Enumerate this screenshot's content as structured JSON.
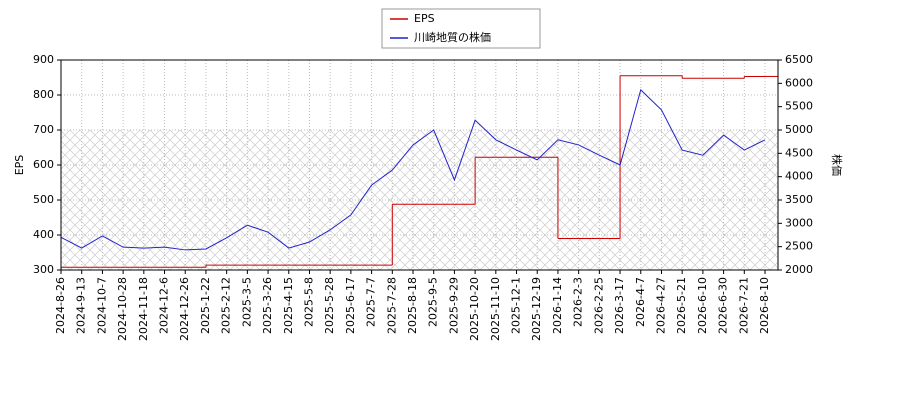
{
  "chart_data": {
    "type": "line",
    "x": [
      "2024-8-26",
      "2024-9-13",
      "2024-10-7",
      "2024-10-28",
      "2024-11-18",
      "2024-12-6",
      "2024-12-26",
      "2025-1-22",
      "2025-2-12",
      "2025-3-5",
      "2025-3-26",
      "2025-4-15",
      "2025-5-8",
      "2025-5-28",
      "2025-6-17",
      "2025-7-7",
      "2025-7-28",
      "2025-8-18",
      "2025-9-5",
      "2025-9-29",
      "2025-10-20",
      "2025-11-10",
      "2025-12-1",
      "2025-12-19",
      "2026-1-14",
      "2026-2-3",
      "2026-2-25",
      "2026-3-17",
      "2026-4-7",
      "2026-4-27",
      "2026-5-21",
      "2026-6-10",
      "2026-6-30",
      "2026-7-21",
      "2026-8-10"
    ],
    "ylabel": "EPS",
    "y2label": "株価",
    "ylim": [
      300,
      900
    ],
    "yticks": [
      300,
      400,
      500,
      600,
      700,
      800,
      900
    ],
    "y2lim": [
      2000,
      6500
    ],
    "y2ticks": [
      2000,
      2500,
      3000,
      3500,
      4000,
      4500,
      5000,
      5500,
      6000,
      6500
    ],
    "grid": true,
    "series": [
      {
        "name": "EPS",
        "color": "#cc0000",
        "step": true,
        "values": [
          308,
          308,
          308,
          308,
          308,
          308,
          308,
          314,
          314,
          314,
          314,
          314,
          314,
          314,
          314,
          314,
          488,
          488,
          488,
          488,
          622,
          622,
          622,
          622,
          390,
          390,
          390,
          855,
          855,
          855,
          848,
          848,
          848,
          853,
          853
        ]
      },
      {
        "name": "川崎地質の株価",
        "color": "#2222cc",
        "axis": "y2",
        "values": [
          2700,
          2470,
          2730,
          2490,
          2470,
          2490,
          2430,
          2450,
          2690,
          2960,
          2810,
          2470,
          2600,
          2860,
          3180,
          3820,
          4140,
          4680,
          5000,
          3930,
          5210,
          4790,
          4570,
          4360,
          4790,
          4680,
          4460,
          4250,
          5860,
          5430,
          4570,
          4460,
          4890,
          4570,
          4790
        ]
      }
    ]
  }
}
